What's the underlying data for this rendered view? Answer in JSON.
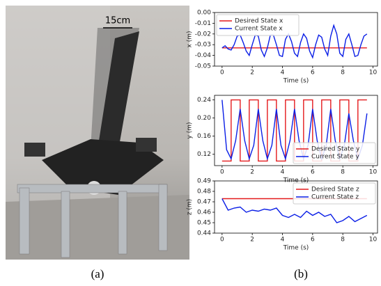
{
  "photo": {
    "annotation": "15cm"
  },
  "captions": [
    "(a)",
    "(b)"
  ],
  "chart_data": [
    {
      "type": "line",
      "xlabel": "Time (s)",
      "ylabel": "x (m)",
      "legend": "upper left",
      "xlim": [
        -0.5,
        10.3
      ],
      "xticks": [
        0,
        2,
        4,
        6,
        8,
        10
      ],
      "ylim": [
        -0.05,
        0
      ],
      "yticks": [
        -0.05,
        -0.04,
        -0.03,
        -0.02,
        -0.01,
        {
          "value": 0,
          "label": "0.00"
        }
      ],
      "series": [
        {
          "name": "Desired State x",
          "color": "#e41a1c",
          "x": [
            0,
            9.6
          ],
          "values": [
            -0.033,
            -0.033
          ]
        },
        {
          "name": "Current State x",
          "color": "#0a1ee6",
          "x": [
            0,
            0.2,
            0.4,
            0.6,
            0.8,
            1.0,
            1.2,
            1.4,
            1.6,
            1.8,
            2.0,
            2.2,
            2.4,
            2.6,
            2.8,
            3.0,
            3.2,
            3.4,
            3.6,
            3.8,
            4.0,
            4.2,
            4.4,
            4.6,
            4.8,
            5.0,
            5.2,
            5.4,
            5.6,
            5.8,
            6.0,
            6.2,
            6.4,
            6.6,
            6.8,
            7.0,
            7.2,
            7.4,
            7.6,
            7.8,
            8.0,
            8.2,
            8.4,
            8.6,
            8.8,
            9.0,
            9.2,
            9.4,
            9.6
          ],
          "values": [
            -0.033,
            -0.031,
            -0.034,
            -0.035,
            -0.03,
            -0.022,
            -0.021,
            -0.028,
            -0.036,
            -0.04,
            -0.03,
            -0.021,
            -0.022,
            -0.035,
            -0.041,
            -0.033,
            -0.021,
            -0.021,
            -0.03,
            -0.04,
            -0.041,
            -0.025,
            -0.02,
            -0.027,
            -0.038,
            -0.041,
            -0.028,
            -0.02,
            -0.024,
            -0.036,
            -0.042,
            -0.03,
            -0.021,
            -0.023,
            -0.034,
            -0.04,
            -0.022,
            -0.012,
            -0.02,
            -0.038,
            -0.041,
            -0.025,
            -0.02,
            -0.03,
            -0.041,
            -0.04,
            -0.03,
            -0.022,
            -0.02
          ]
        }
      ]
    },
    {
      "type": "line",
      "xlabel": "Time (s)",
      "ylabel": "y (m)",
      "legend": "lower right",
      "xlim": [
        -0.5,
        10.3
      ],
      "xticks": [
        0,
        2,
        4,
        6,
        8,
        10
      ],
      "ylim": [
        0.095,
        0.25
      ],
      "yticks": [
        0.12,
        0.16,
        {
          "value": 0.2,
          "label": "0.20"
        },
        0.24
      ],
      "series": [
        {
          "name": "Desired State y",
          "color": "#e41a1c",
          "x": [
            0,
            0.6,
            0.6,
            1.2,
            1.2,
            1.8,
            1.8,
            2.4,
            2.4,
            3.0,
            3.0,
            3.6,
            3.6,
            4.2,
            4.2,
            4.8,
            4.8,
            5.4,
            5.4,
            6.0,
            6.0,
            6.6,
            6.6,
            7.2,
            7.2,
            7.8,
            7.8,
            8.4,
            8.4,
            9.0,
            9.0,
            9.6
          ],
          "values": [
            0.105,
            0.105,
            0.24,
            0.24,
            0.105,
            0.105,
            0.24,
            0.24,
            0.105,
            0.105,
            0.24,
            0.24,
            0.105,
            0.105,
            0.24,
            0.24,
            0.105,
            0.105,
            0.24,
            0.24,
            0.105,
            0.105,
            0.24,
            0.24,
            0.105,
            0.105,
            0.24,
            0.24,
            0.105,
            0.105,
            0.24,
            0.24
          ]
        },
        {
          "name": "Current State y",
          "color": "#0a1ee6",
          "x": [
            0,
            0.3,
            0.6,
            0.9,
            1.2,
            1.5,
            1.8,
            2.1,
            2.4,
            2.7,
            3.0,
            3.3,
            3.6,
            3.9,
            4.2,
            4.5,
            4.8,
            5.1,
            5.4,
            5.7,
            6.0,
            6.3,
            6.6,
            6.9,
            7.2,
            7.5,
            7.8,
            8.1,
            8.4,
            8.7,
            9.0,
            9.3,
            9.6
          ],
          "values": [
            0.24,
            0.13,
            0.11,
            0.15,
            0.22,
            0.15,
            0.11,
            0.14,
            0.22,
            0.15,
            0.11,
            0.14,
            0.22,
            0.14,
            0.11,
            0.15,
            0.22,
            0.15,
            0.11,
            0.14,
            0.22,
            0.15,
            0.11,
            0.14,
            0.22,
            0.15,
            0.11,
            0.14,
            0.21,
            0.15,
            0.11,
            0.14,
            0.21
          ]
        }
      ]
    },
    {
      "type": "line",
      "xlabel": "Time (s)",
      "ylabel": "z (m)",
      "legend": "upper right",
      "xlim": [
        -0.5,
        10.3
      ],
      "xticks": [
        0,
        2,
        4,
        6,
        8,
        10
      ],
      "ylim": [
        0.44,
        0.49
      ],
      "yticks": [
        0.44,
        0.45,
        0.46,
        0.47,
        0.48,
        0.49
      ],
      "series": [
        {
          "name": "Desired State z",
          "color": "#e41a1c",
          "x": [
            0,
            9.6
          ],
          "values": [
            0.473,
            0.473
          ]
        },
        {
          "name": "Current State z",
          "color": "#0a1ee6",
          "x": [
            0,
            0.4,
            0.8,
            1.2,
            1.6,
            2.0,
            2.4,
            2.8,
            3.2,
            3.6,
            4.0,
            4.4,
            4.8,
            5.2,
            5.6,
            6.0,
            6.4,
            6.8,
            7.2,
            7.6,
            8.0,
            8.4,
            8.8,
            9.2,
            9.6
          ],
          "values": [
            0.473,
            0.462,
            0.464,
            0.465,
            0.46,
            0.462,
            0.461,
            0.463,
            0.462,
            0.464,
            0.457,
            0.455,
            0.458,
            0.455,
            0.461,
            0.457,
            0.46,
            0.456,
            0.458,
            0.45,
            0.452,
            0.456,
            0.451,
            0.454,
            0.457
          ]
        }
      ]
    }
  ]
}
